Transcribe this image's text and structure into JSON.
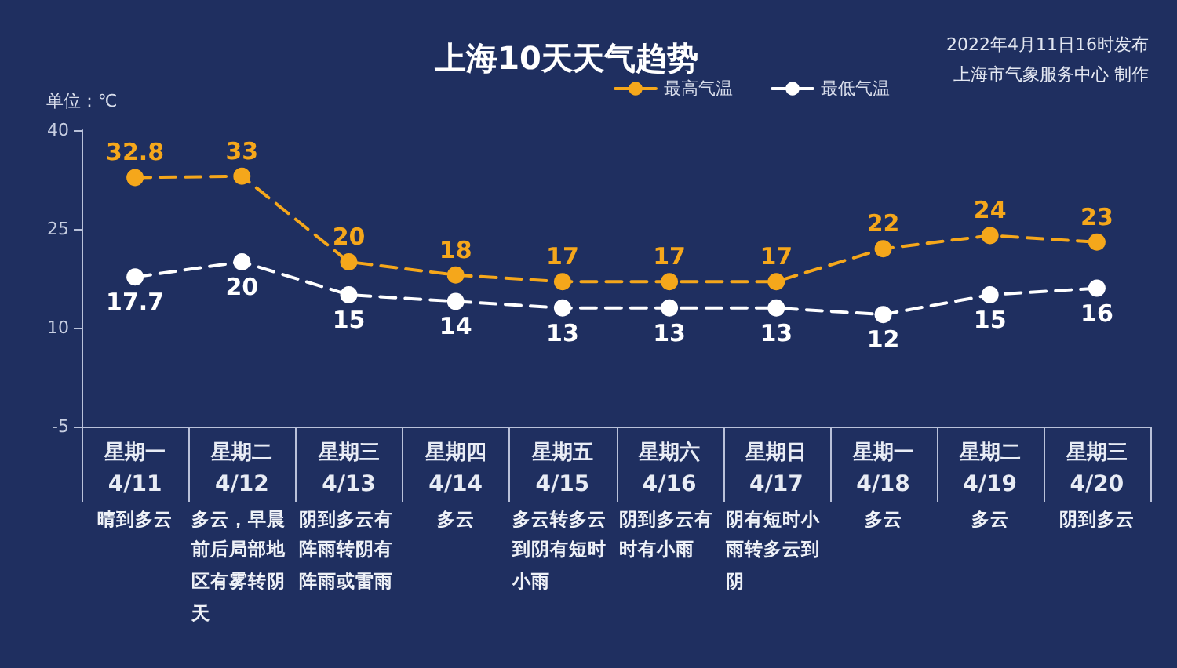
{
  "chart_data": {
    "type": "line",
    "title": "上海10天天气趋势",
    "ylabel": "单位：℃",
    "categories": [
      "星期一\n4/11\n晴到多云",
      "星期二\n4/12\n多云，早晨前后局部地区有雾转阴天",
      "星期三\n4/13\n阴到多云有阵雨转阴有阵雨或雷雨",
      "星期四\n4/14\n多云",
      "星期五\n4/15\n多云转多云到阴有短时小雨",
      "星期六\n4/16\n阴到多云有时有小雨",
      "星期日\n4/17\n阴有短时小雨转多云到阴",
      "星期一\n4/18\n多云",
      "星期二\n4/19\n多云",
      "星期三\n4/20\n阴到多云"
    ],
    "series": [
      {
        "name": "最高气温",
        "color": "#f5a71b",
        "values": [
          32.8,
          33,
          20,
          18,
          17,
          17,
          17,
          22,
          24,
          23
        ]
      },
      {
        "name": "最低气温",
        "color": "#ffffff",
        "values": [
          17.7,
          20,
          15,
          14,
          13,
          13,
          13,
          12,
          15,
          16
        ]
      }
    ],
    "ylim": [
      -5,
      40
    ],
    "yticks": [
      -5,
      10,
      25,
      40
    ],
    "grid": false,
    "legend": "top",
    "marker": "circle",
    "line_style": "dashed",
    "data_labels": true,
    "annotations": [
      "2022年4月11日16时发布",
      "上海市气象服务中心 制作"
    ]
  }
}
